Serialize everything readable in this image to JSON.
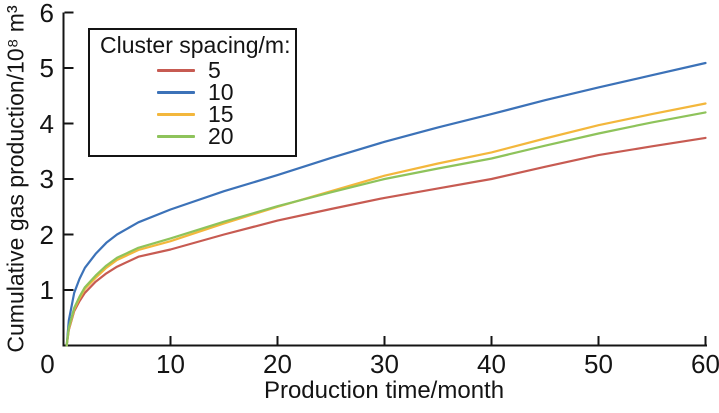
{
  "figure": {
    "background": "#ffffff",
    "text_color": "#141414",
    "axis_color": "#141414"
  },
  "chart_data": {
    "type": "line",
    "title": "",
    "xlabel": "Production time/month",
    "ylabel": "Cumulative gas production/10⁸ m³",
    "xlim": [
      0,
      60
    ],
    "ylim": [
      0,
      6
    ],
    "xticks": [
      0,
      10,
      20,
      30,
      40,
      50,
      60
    ],
    "yticks": [
      1,
      2,
      3,
      4,
      5,
      6
    ],
    "grid": false,
    "legend": {
      "title": "Cluster spacing/m:",
      "position": "upper-left"
    },
    "x": [
      0.3,
      0.5,
      1,
      1.5,
      2,
      3,
      4,
      5,
      7,
      10,
      15,
      20,
      25,
      30,
      35,
      40,
      45,
      50,
      55,
      60
    ],
    "series": [
      {
        "name": "cluster-spacing-5",
        "label": "5",
        "color": "#C75B52",
        "values": [
          0,
          0.28,
          0.62,
          0.8,
          0.95,
          1.15,
          1.3,
          1.42,
          1.6,
          1.73,
          2.0,
          2.25,
          2.46,
          2.66,
          2.83,
          3.0,
          3.22,
          3.43,
          3.59,
          3.74
        ]
      },
      {
        "name": "cluster-spacing-10",
        "label": "10",
        "color": "#3C72B8",
        "values": [
          0,
          0.45,
          0.95,
          1.2,
          1.4,
          1.65,
          1.85,
          2.0,
          2.22,
          2.45,
          2.78,
          3.07,
          3.38,
          3.67,
          3.93,
          4.17,
          4.42,
          4.65,
          4.87,
          5.09
        ]
      },
      {
        "name": "cluster-spacing-15",
        "label": "15",
        "color": "#F3B73C",
        "values": [
          0,
          0.3,
          0.65,
          0.85,
          1.02,
          1.22,
          1.4,
          1.54,
          1.72,
          1.88,
          2.2,
          2.5,
          2.78,
          3.06,
          3.28,
          3.48,
          3.73,
          3.97,
          4.17,
          4.36
        ]
      },
      {
        "name": "cluster-spacing-20",
        "label": "20",
        "color": "#8EC35B",
        "values": [
          0,
          0.32,
          0.68,
          0.88,
          1.05,
          1.26,
          1.44,
          1.58,
          1.76,
          1.93,
          2.23,
          2.51,
          2.76,
          3.0,
          3.19,
          3.37,
          3.6,
          3.82,
          4.02,
          4.2
        ]
      }
    ]
  }
}
